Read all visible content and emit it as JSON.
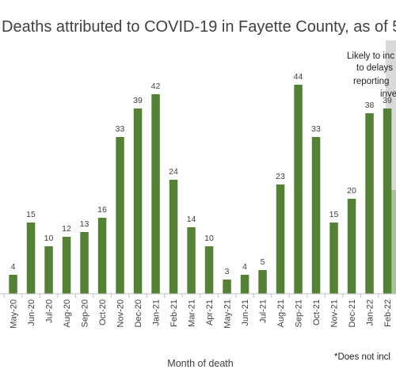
{
  "chart_data": {
    "type": "bar",
    "title": "Deaths attributed to COVID-19 in Fayette County, as of 5",
    "xlabel": "Month of death",
    "ylabel": "",
    "categories": [
      "May-20",
      "Jun-20",
      "Jul-20",
      "Aug-20",
      "Sep-20",
      "Oct-20",
      "Nov-20",
      "Dec-20",
      "Jan-21",
      "Feb-21",
      "Mar-21",
      "Apr-21",
      "May-21",
      "Jun-21",
      "Jul-21",
      "Aug-21",
      "Sep-21",
      "Oct-21",
      "Nov-21",
      "Dec-21",
      "Jan-22",
      "Feb-22"
    ],
    "values": [
      4,
      15,
      10,
      12,
      13,
      16,
      33,
      39,
      42,
      24,
      14,
      10,
      3,
      4,
      5,
      23,
      44,
      33,
      15,
      20,
      38,
      39
    ],
    "data_labels": [
      "4",
      "15",
      "10",
      "12",
      "13",
      "16",
      "33",
      "39",
      "42",
      "24",
      "14",
      "10",
      "3",
      "4",
      "5",
      "23",
      "44",
      "33",
      "15",
      "20",
      "38",
      "39"
    ],
    "ylim": [
      0,
      50
    ],
    "grid": false,
    "bar_color": "#548235",
    "shaded_bar_color": "#a9c49a",
    "shaded_band_color": "#d9d9d9",
    "annotation_lines": [
      "Likely to inc",
      "to delays",
      "reporting",
      "inve"
    ],
    "footnote": "*Does not incl"
  }
}
